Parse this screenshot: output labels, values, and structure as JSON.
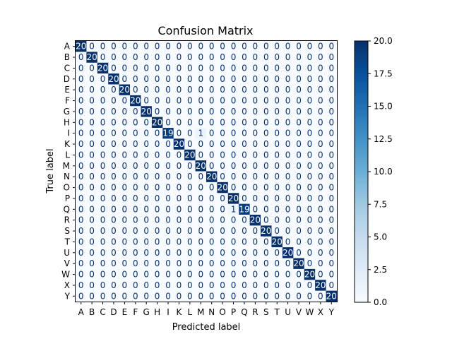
{
  "chart_data": {
    "type": "heatmap",
    "title": "Confusion Matrix",
    "xlabel": "Predicted label",
    "ylabel": "True label",
    "labels": [
      "A",
      "B",
      "C",
      "D",
      "E",
      "F",
      "G",
      "H",
      "I",
      "K",
      "L",
      "M",
      "N",
      "O",
      "P",
      "Q",
      "R",
      "S",
      "T",
      "U",
      "V",
      "W",
      "X",
      "Y"
    ],
    "diagonal": [
      20,
      20,
      20,
      20,
      20,
      20,
      20,
      20,
      19,
      20,
      20,
      20,
      20,
      20,
      20,
      19,
      20,
      20,
      20,
      20,
      20,
      20,
      20,
      20
    ],
    "off_diagonal": [
      {
        "true": "I",
        "predicted": "M",
        "value": 1
      },
      {
        "true": "Q",
        "predicted": "P",
        "value": 1
      }
    ],
    "colormap": "Blues",
    "vmin": 0,
    "vmax": 20,
    "colorbar_ticks": [
      "0.0",
      "2.5",
      "5.0",
      "7.5",
      "10.0",
      "12.5",
      "15.0",
      "17.5",
      "20.0"
    ],
    "colors": {
      "low": "#f7fbff",
      "high": "#08306b",
      "text_dark": "#08306b",
      "text_light": "#f7fbff"
    }
  }
}
